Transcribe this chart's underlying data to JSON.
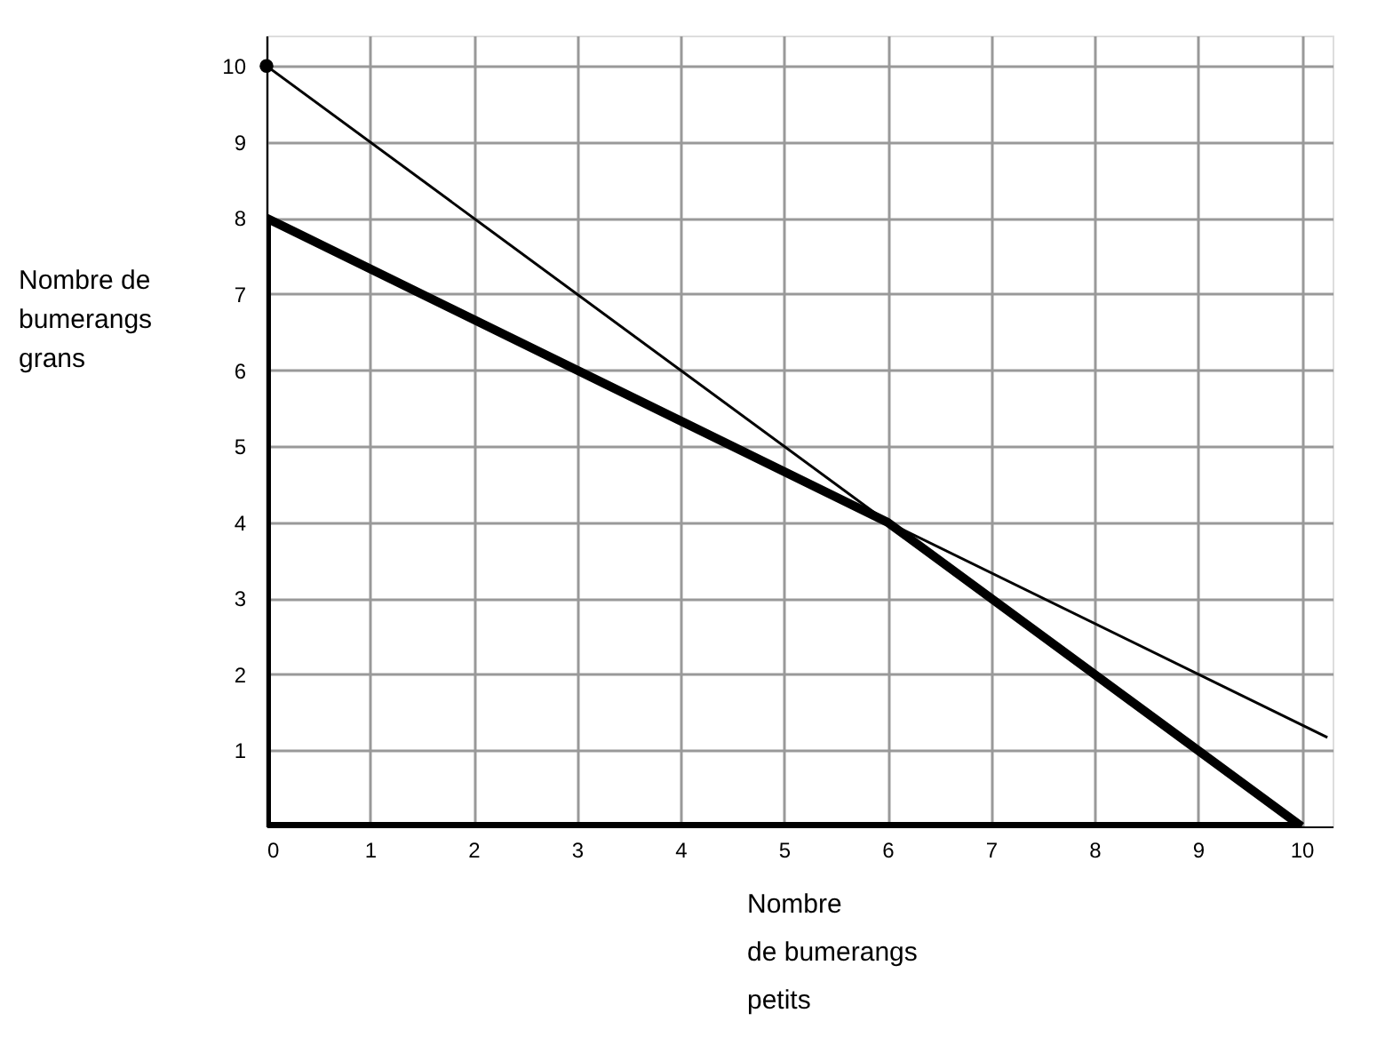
{
  "chart_data": {
    "type": "line",
    "xlabel": "Nombre\nde bumerangs\npetits",
    "ylabel": "Nombre de\nbumerangs\ngrans",
    "xlim": [
      0,
      10.3
    ],
    "ylim": [
      0,
      10.4
    ],
    "xticks": [
      0,
      1,
      2,
      3,
      4,
      5,
      6,
      7,
      8,
      9,
      10
    ],
    "yticks": [
      1,
      2,
      3,
      4,
      5,
      6,
      7,
      8,
      9,
      10
    ],
    "grid": true,
    "series": [
      {
        "color": "#000000",
        "x": [
          0,
          10
        ],
        "values": [
          10,
          0
        ]
      },
      {
        "color": "#000000",
        "x": [
          0,
          10.25
        ],
        "values": [
          8,
          1.17
        ]
      },
      {
        "color": "#000000",
        "x": [
          0,
          0,
          6,
          10
        ],
        "values": [
          0,
          8,
          4,
          0
        ]
      },
      {
        "color": "#000000",
        "x": [
          10,
          0
        ],
        "values": [
          0,
          0
        ]
      },
      {
        "type": "scatter",
        "color": "#000000",
        "x": [
          0
        ],
        "values": [
          10
        ],
        "marker": "circle"
      }
    ]
  }
}
